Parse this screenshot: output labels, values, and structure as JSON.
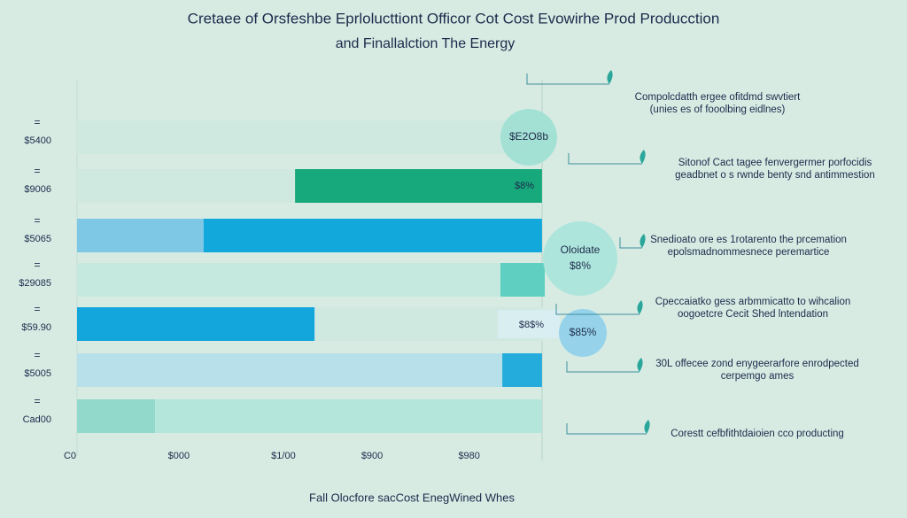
{
  "chart_data": {
    "type": "bar",
    "orientation": "horizontal",
    "title": "Cretaee of Orsfeshbe Eprlolucttiont Officor Cot Cost Evowirhe Prod Producction",
    "subtitle": "and Finallalction The Energy",
    "x_label": "Fall Olocfore sacCost EnegWined Whes",
    "categories": [
      "$5400",
      "$9006",
      "$5065",
      "$29085",
      "$59.90",
      "$5005",
      "Cad00"
    ],
    "series": [
      {
        "colors": [
          "#cfe9e0",
          "#cfe9e0",
          "#7ec8e6",
          "#c6e9df",
          "#12a6dc",
          "#b7e0ea",
          "#93d9cb"
        ],
        "values": [
          97,
          46.7,
          27.1,
          90.7,
          50.9,
          91.1,
          16.7
        ]
      },
      {
        "colors": [
          "#cfe9e0",
          "#17a97b",
          "#12a8dc",
          "#5fcfc1",
          "#cfe9e0",
          "#24addc",
          "#b5e6dc"
        ],
        "values": [
          0,
          52.9,
          72.5,
          9.5,
          48.8,
          8.5,
          82.9
        ]
      }
    ],
    "xlim": [
      0,
      100
    ],
    "xticks": [
      {
        "value": 0,
        "label": "C0"
      },
      {
        "value": 21.8,
        "label": "$000"
      },
      {
        "value": 44.2,
        "label": "$1/00"
      },
      {
        "value": 63.2,
        "label": "$900"
      },
      {
        "value": 84,
        "label": "$980"
      }
    ],
    "bubbles": [
      {
        "lines": [
          "$E2O8b"
        ]
      },
      {
        "lines": [
          "Oloidate",
          "$8%"
        ]
      },
      {
        "lines": [
          "$85%"
        ]
      }
    ],
    "bar_labels": [
      "$8%",
      "$8$%"
    ],
    "annotations": [
      {
        "lines": [
          "Compolcdatth ergee ofitdmd swvtiert",
          "(unies es of fooolbing eidlnes)"
        ]
      },
      {
        "lines": [
          "Sitonof Cact tagee fenvergermer porfocidis",
          "geadbnet o s rwnde benty snd antimmestion"
        ]
      },
      {
        "lines": [
          "Snedioato ore es 1rotarento the prcemation",
          "epolsmadnommesnece peremartice"
        ]
      },
      {
        "lines": [
          "Cpeccaiatko gess arbmmicatto to wihcalion",
          "oogoetcre Cecit Shed lntendation"
        ]
      },
      {
        "lines": [
          "30L offecee zond enygeerarfore enrodpected",
          "cerpemgo ames"
        ]
      },
      {
        "lines": [
          "Corestt cefbfithtdaioien cco producting"
        ]
      }
    ]
  }
}
